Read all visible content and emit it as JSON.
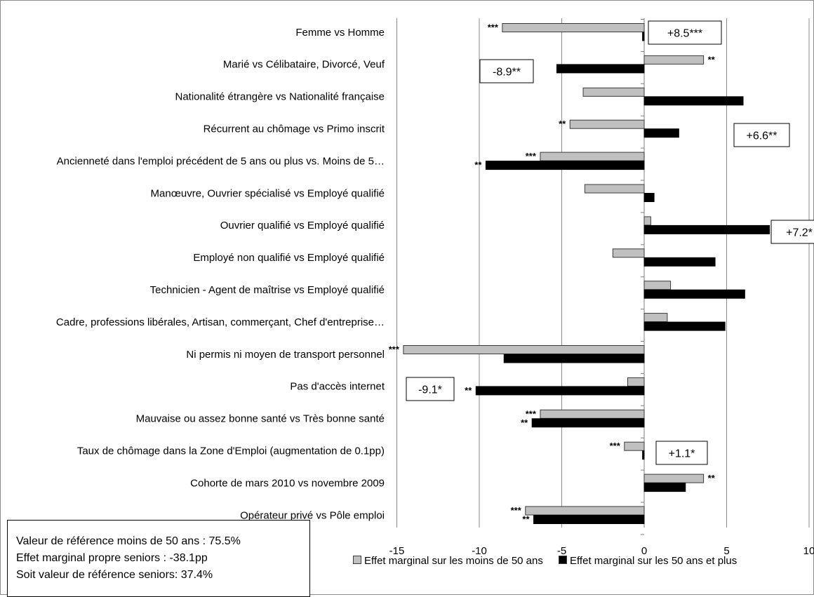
{
  "chart_data": {
    "type": "bar",
    "orientation": "horizontal",
    "categories": [
      "Femme vs Homme",
      "Marié vs Célibataire, Divorcé, Veuf",
      "Nationalité étrangère vs Nationalité française",
      "Récurrent au chômage vs Primo inscrit",
      "Ancienneté dans l'emploi précédent de 5 ans ou plus vs. Moins de 5…",
      "Manœuvre, Ouvrier spécialisé vs Employé qualifié",
      "Ouvrier qualifié vs Employé qualifié",
      "Employé non qualifié vs Employé qualifié",
      "Technicien - Agent de maîtrise vs Employé qualifié",
      "Cadre, professions libérales, Artisan, commerçant, Chef d'entreprise…",
      "Ni permis ni moyen de transport personnel",
      "Pas d'accès internet",
      "Mauvaise ou assez bonne santé vs Très bonne santé",
      "Taux de chômage dans la Zone d'Emploi (augmentation de 0.1pp)",
      "Cohorte de mars 2010 vs novembre 2009",
      "Opérateur privé vs Pôle emploi"
    ],
    "series": [
      {
        "name": "Effet marginal sur les moins de 50 ans",
        "color": "#c0c0c0",
        "values": [
          -8.6,
          3.6,
          -3.7,
          -4.5,
          -6.3,
          -3.6,
          0.4,
          -1.9,
          1.6,
          1.4,
          -14.6,
          -1.0,
          -6.3,
          -1.2,
          3.6,
          -7.2
        ],
        "significance": [
          "***",
          "**",
          "",
          "**",
          "***",
          "",
          "",
          "",
          "",
          "",
          "***",
          "",
          "***",
          "***",
          "**",
          "***"
        ]
      },
      {
        "name": "Effet marginal sur les 50 ans et plus",
        "color": "#000000",
        "values": [
          -0.1,
          -5.3,
          6.0,
          2.1,
          -9.6,
          0.6,
          7.6,
          4.3,
          6.1,
          4.9,
          -8.5,
          -10.2,
          -6.8,
          -0.1,
          2.5,
          -6.7
        ],
        "significance": [
          "",
          "",
          "",
          "",
          "**",
          "",
          "*",
          "",
          "",
          "",
          "",
          "**",
          "**",
          "",
          "",
          "**"
        ]
      }
    ],
    "xlim": [
      -15,
      10
    ],
    "xticks": [
      "-15",
      "-10",
      "-5",
      "0",
      "5",
      "10"
    ],
    "grid": true,
    "legend_position": "bottom",
    "annotations": [
      "+8.5***",
      "-8.9**",
      "+6.6**",
      "+7.2*",
      "-9.1*",
      "+1.1*"
    ]
  },
  "note": {
    "line1": "Valeur de référence moins de 50 ans : 75.5%",
    "line2": "Effet marginal propre seniors : -38.1pp",
    "line3": "Soit valeur de référence seniors: 37.4%"
  }
}
